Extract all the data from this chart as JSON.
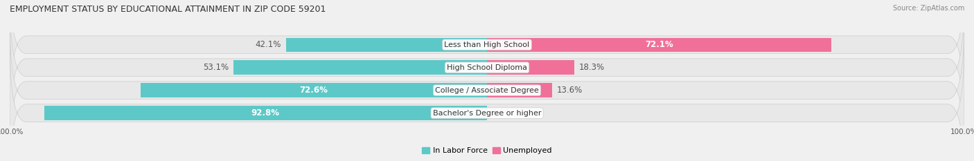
{
  "title": "EMPLOYMENT STATUS BY EDUCATIONAL ATTAINMENT IN ZIP CODE 59201",
  "source": "Source: ZipAtlas.com",
  "categories": [
    "Less than High School",
    "High School Diploma",
    "College / Associate Degree",
    "Bachelor's Degree or higher"
  ],
  "labor_force": [
    42.1,
    53.1,
    72.6,
    92.8
  ],
  "unemployed": [
    72.1,
    18.3,
    13.6,
    0.0
  ],
  "labor_force_color": "#5DC8C8",
  "unemployed_color": "#F07099",
  "bar_height": 0.62,
  "background_color": "#f0f0f0",
  "pill_color": "#e8e8e8",
  "pill_border_color": "#cccccc",
  "label_fontsize": 8.5,
  "title_fontsize": 9.0,
  "tick_fontsize": 7.5,
  "source_fontsize": 7.0,
  "legend_fontsize": 8.0,
  "lf_label_threshold": 60,
  "un_label_threshold": 30,
  "lf_label_inside_color": "white",
  "lf_label_outside_color": "#555555",
  "un_label_inside_color": "white",
  "un_label_outside_color": "#555555"
}
